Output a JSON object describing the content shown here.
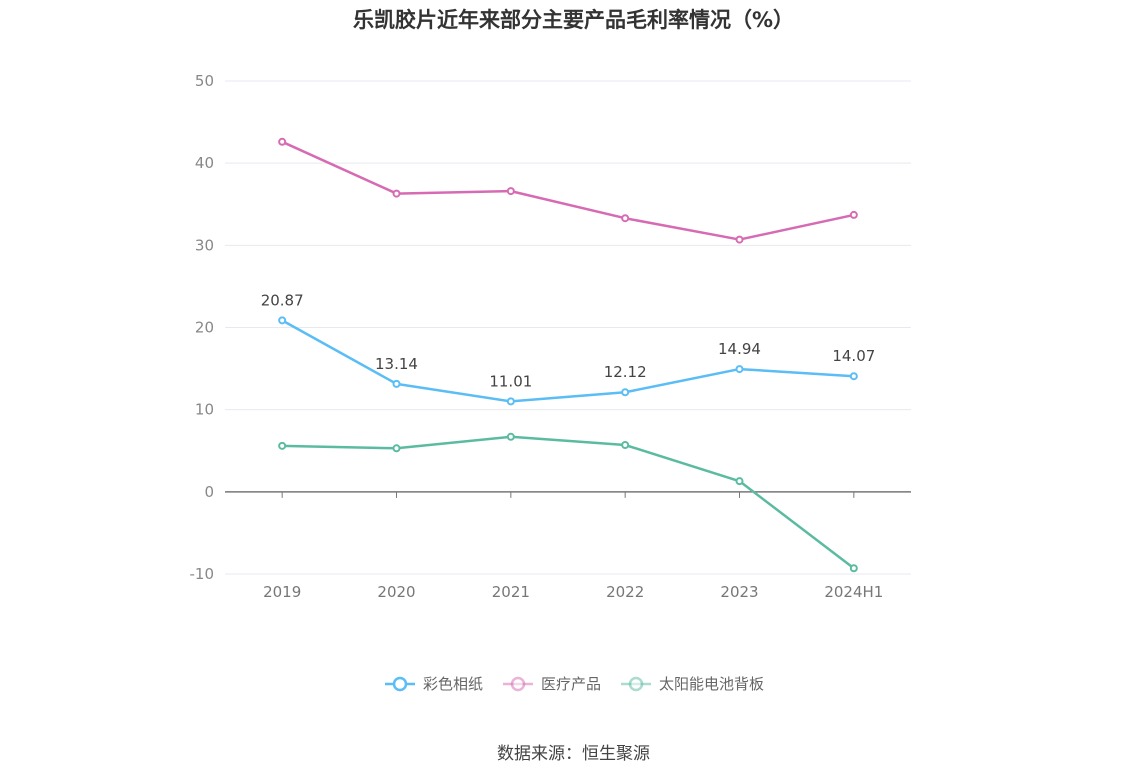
{
  "title": "乐凯胶片近年来部分主要产品毛利率情况（%）",
  "source": "数据来源：恒生聚源",
  "chart_data": {
    "type": "line",
    "categories": [
      "2019",
      "2020",
      "2021",
      "2022",
      "2023",
      "2024H1"
    ],
    "ylim": [
      -10,
      50
    ],
    "yticks": [
      -10,
      0,
      10,
      20,
      30,
      40,
      50
    ],
    "grid": true,
    "legend_position": "bottom",
    "series": [
      {
        "name": "彩色相纸",
        "color": "#5bbdf5",
        "values": [
          20.87,
          13.14,
          11.01,
          12.12,
          14.94,
          14.07
        ],
        "labels": [
          "20.87",
          "13.14",
          "11.01",
          "12.12",
          "14.94",
          "14.07"
        ]
      },
      {
        "name": "医疗产品",
        "color": "#d66bb3",
        "values": [
          42.6,
          36.3,
          36.6,
          33.3,
          30.7,
          33.7
        ]
      },
      {
        "name": "太阳能电池背板",
        "color": "#5bbba0",
        "values": [
          5.6,
          5.3,
          6.7,
          5.7,
          1.3,
          -9.3
        ]
      }
    ]
  }
}
